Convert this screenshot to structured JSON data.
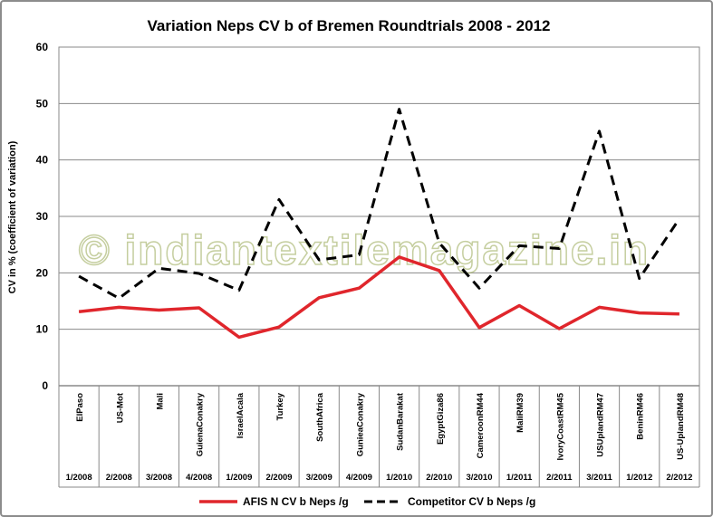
{
  "chart_data": {
    "type": "line",
    "title": "Variation Neps CV b of Bremen Roundtrials 2008 - 2012",
    "ylabel": "CV in %  (coefficient of variation)",
    "xlabel": "",
    "ylim": [
      0,
      60
    ],
    "yticks": [
      0,
      10,
      20,
      30,
      40,
      50,
      60
    ],
    "grid": "horizontal",
    "legend_position": "bottom",
    "categories": [
      "ElPaso",
      "US-Mot",
      "Mali",
      "GuienaConakry",
      "IsraelAcala",
      "Turkey",
      "SouthAfrica",
      "GunieaConakry",
      "SudanBarakat",
      "EgyptGiza86",
      "CameroonRM44",
      "MaliRM39",
      "IvoryCoastRM45",
      "USUplandRM47",
      "BeninRM46",
      "US-UplandRM48"
    ],
    "periods": [
      "1/2008",
      "2/2008",
      "3/2008",
      "4/2008",
      "1/2009",
      "2/2009",
      "3/2009",
      "4/2009",
      "1/2010",
      "2/2010",
      "3/2010",
      "1/2011",
      "2/2011",
      "3/2011",
      "1/2012",
      "2/2012"
    ],
    "series": [
      {
        "name": "AFIS N CV b Neps /g",
        "color": "#e0262c",
        "style": "solid",
        "values": [
          13.1,
          13.9,
          13.4,
          13.8,
          8.6,
          10.4,
          15.6,
          17.3,
          22.8,
          20.4,
          10.3,
          14.2,
          10.1,
          13.9,
          12.9,
          12.7
        ]
      },
      {
        "name": "Competitor CV b  Neps /g",
        "color": "#000000",
        "style": "dashed",
        "values": [
          19.4,
          15.5,
          20.8,
          19.9,
          16.9,
          33.0,
          22.3,
          23.2,
          49.0,
          25.3,
          17.3,
          24.8,
          24.3,
          45.1,
          19.0,
          29.6
        ]
      }
    ]
  },
  "watermark": "© indiantextilemagazine.in"
}
